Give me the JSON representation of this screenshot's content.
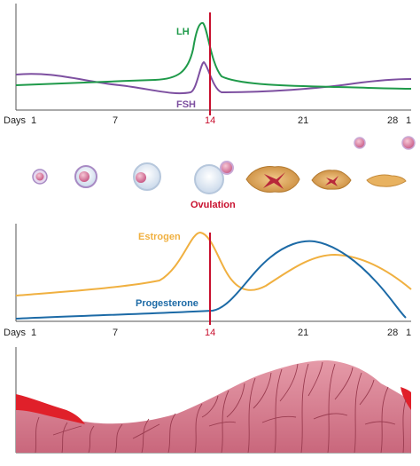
{
  "hormone_chart_top": {
    "lh_label": "LH",
    "fsh_label": "FSH",
    "days_label": "Days",
    "ticks": [
      "1",
      "7",
      "14",
      "21",
      "28",
      "1"
    ],
    "colors": {
      "lh": "#1f9a4a",
      "fsh": "#7d4fa0",
      "ovulation_line": "#c8102e"
    }
  },
  "follicle_stage": {
    "ovulation_label": "Ovulation",
    "label_color": "#c8102e"
  },
  "hormone_chart_bottom": {
    "estrogen_label": "Estrogen",
    "progesterone_label": "Progesterone",
    "days_label": "Days",
    "ticks": [
      "1",
      "7",
      "14",
      "21",
      "28",
      "1"
    ],
    "colors": {
      "estrogen": "#f0b040",
      "progesterone": "#1c6aa6",
      "ovulation_line": "#c8102e"
    }
  },
  "endometrium": {
    "colors": {
      "tissue": "#d4788a",
      "menstrual_flow": "#e0202a",
      "vessels": "#9a3c50"
    }
  }
}
